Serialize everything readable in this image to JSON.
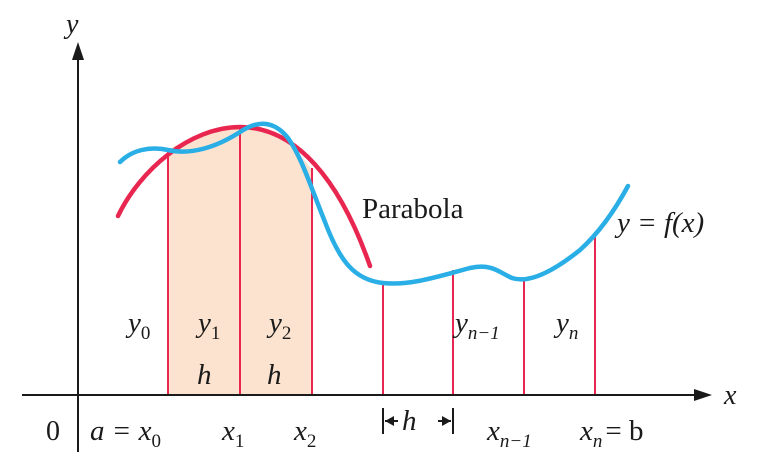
{
  "axes": {
    "y_label": "y",
    "x_label": "x",
    "origin_label": "0"
  },
  "labels": {
    "parabola": "Parabola",
    "function": "y = f(x)",
    "y0": {
      "base": "y",
      "sub": "0"
    },
    "y1": {
      "base": "y",
      "sub": "1"
    },
    "y2": {
      "base": "y",
      "sub": "2"
    },
    "yn_1": {
      "base": "y",
      "sub": "n−1"
    },
    "yn": {
      "base": "y",
      "sub": "n"
    },
    "h1": "h",
    "h2": "h",
    "h_interval": "h",
    "x0_prefix": "a = ",
    "x0": {
      "base": "x",
      "sub": "0"
    },
    "x1": {
      "base": "x",
      "sub": "1"
    },
    "x2": {
      "base": "x",
      "sub": "2"
    },
    "xn_1": {
      "base": "x",
      "sub": "n−1"
    },
    "xn": {
      "base": "x",
      "sub": "n"
    },
    "xn_suffix": "= b"
  },
  "colors": {
    "curve": "#29aee6",
    "parabola": "#e8264f",
    "ordinates": "#e8264f",
    "shading": "#fbe3cf",
    "axis": "#1a1a1a"
  }
}
